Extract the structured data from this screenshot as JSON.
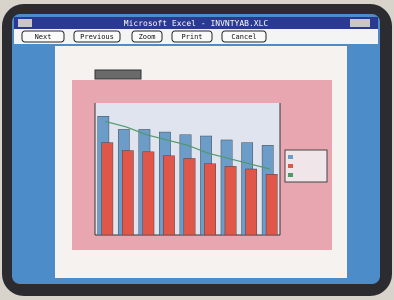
{
  "window": {
    "title": "Microsoft Excel - INVNTYAB.XLC"
  },
  "toolbar": {
    "buttons": [
      "Next",
      "Previous",
      "Zoom",
      "Print",
      "Cancel"
    ]
  },
  "chart_data": {
    "type": "bar",
    "series": [
      {
        "color": "#6c9cc8",
        "values": [
          90,
          80,
          80,
          78,
          76,
          75,
          72,
          70,
          68
        ]
      },
      {
        "color": "#e0574a",
        "values": [
          70,
          64,
          63,
          60,
          58,
          54,
          52,
          50,
          46
        ]
      },
      {
        "color": "#4e9a6a",
        "type": "line",
        "values": [
          86,
          82,
          76,
          72,
          68,
          62,
          58,
          54,
          50
        ]
      }
    ],
    "ylim": [
      0,
      100
    ]
  }
}
